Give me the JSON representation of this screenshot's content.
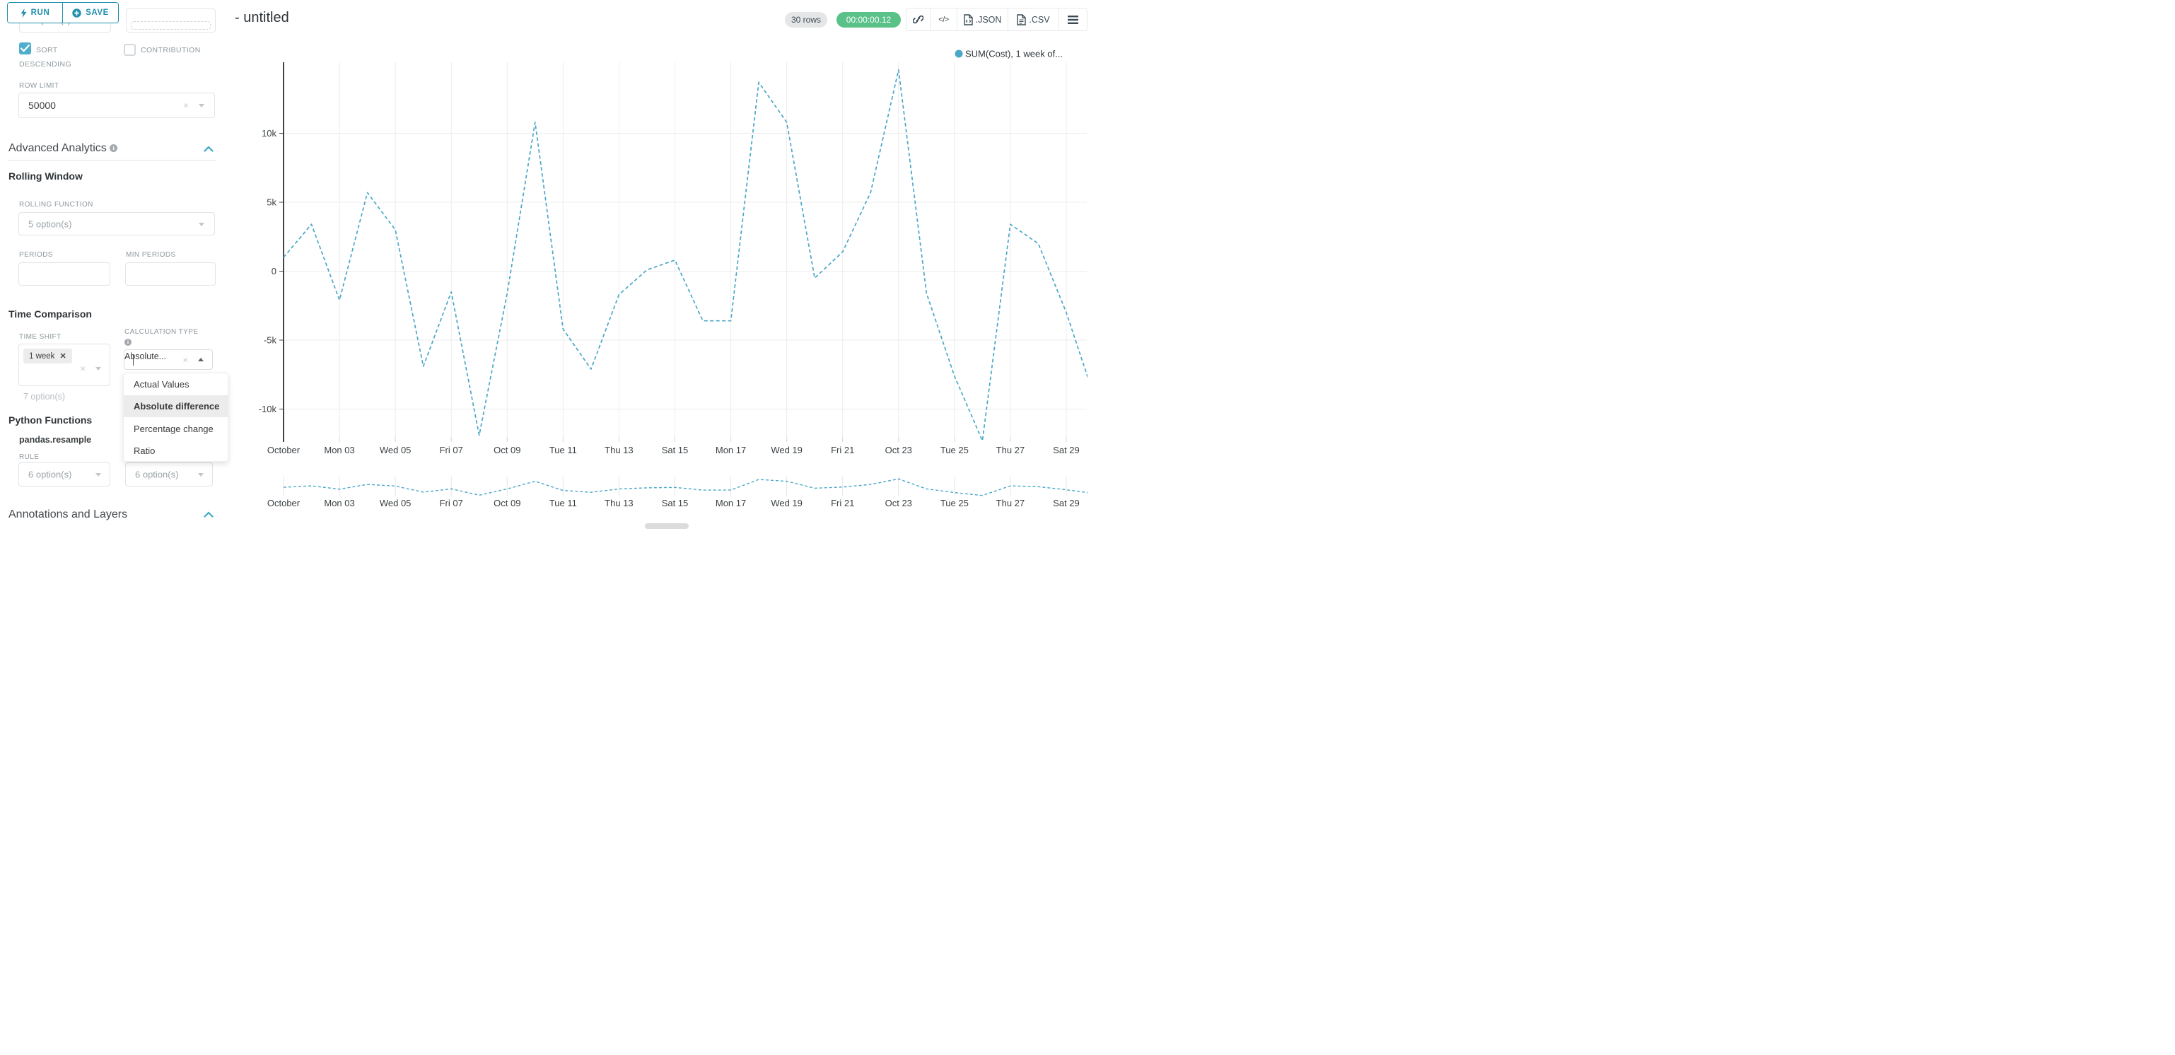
{
  "toolbar": {
    "run_label": "RUN",
    "save_label": "SAVE"
  },
  "sidebar": {
    "partial_select_value": "7 option(s)",
    "sort_descending_label": "SORT DESCENDING",
    "contribution_label": "CONTRIBUTION",
    "row_limit_label": "ROW LIMIT",
    "row_limit_value": "50000",
    "advanced_analytics_title": "Advanced Analytics",
    "rolling_window_title": "Rolling Window",
    "rolling_function_label": "ROLLING FUNCTION",
    "rolling_function_value": "5 option(s)",
    "periods_label": "PERIODS",
    "min_periods_label": "MIN PERIODS",
    "time_comparison_title": "Time Comparison",
    "time_shift_label": "TIME SHIFT",
    "time_shift_tag": "1 week",
    "time_shift_placeholder": "7 option(s)",
    "calculation_type_label": "CALCULATION TYPE",
    "calculation_type_value": "Absolute...",
    "python_functions_title": "Python Functions",
    "pandas_resample_label": "pandas.resample",
    "rule_label": "RULE",
    "rule_value_left": "6 option(s)",
    "rule_value_right": "6 option(s)",
    "annotations_title": "Annotations and Layers"
  },
  "dropdown": {
    "items": [
      "Actual Values",
      "Absolute difference",
      "Percentage change",
      "Ratio"
    ],
    "selected": "Absolute difference"
  },
  "header": {
    "title": "- untitled",
    "rows_badge": "30 rows",
    "timer_badge": "00:00:00.12",
    "code_icon_label": "</>",
    "json_label": ".JSON",
    "csv_label": ".CSV"
  },
  "colors": {
    "accent_teal": "#2191ad",
    "checkbox_teal": "#4faecb",
    "timer_green": "#5ac189",
    "line_blue": "#4ba7c7"
  },
  "chart_data": {
    "type": "line",
    "title": "",
    "legend": [
      {
        "label": "SUM(Cost), 1 week of...",
        "color": "#4ba7c7"
      }
    ],
    "series": [
      {
        "name": "SUM(Cost), 1 week of...",
        "values": [
          1000,
          3400,
          -2100,
          5700,
          3000,
          -6900,
          -1500,
          -11900,
          -1600,
          10800,
          -4200,
          -7100,
          -1700,
          100,
          800,
          -3600,
          -3600,
          13700,
          10800,
          -500,
          1400,
          5700,
          14600,
          -1600,
          -7600,
          -12300,
          3400,
          2000,
          -3000,
          -9100
        ]
      }
    ],
    "x": [
      "Oct 01",
      "Oct 02",
      "Oct 03",
      "Oct 04",
      "Oct 05",
      "Oct 06",
      "Oct 07",
      "Oct 08",
      "Oct 09",
      "Oct 10",
      "Oct 11",
      "Oct 12",
      "Oct 13",
      "Oct 14",
      "Oct 15",
      "Oct 16",
      "Oct 17",
      "Oct 18",
      "Oct 19",
      "Oct 20",
      "Oct 21",
      "Oct 22",
      "Oct 23",
      "Oct 24",
      "Oct 25",
      "Oct 26",
      "Oct 27",
      "Oct 28",
      "Oct 29",
      "Oct 30"
    ],
    "x_tick_labels": [
      "October",
      "Mon 03",
      "Wed 05",
      "Fri 07",
      "Oct 09",
      "Tue 11",
      "Thu 13",
      "Sat 15",
      "Mon 17",
      "Wed 19",
      "Fri 21",
      "Oct 23",
      "Tue 25",
      "Thu 27",
      "Sat 29"
    ],
    "y_tick_labels": [
      "10k",
      "5k",
      "0",
      "-5k",
      "-10k"
    ],
    "y_tick_values": [
      10000,
      5000,
      0,
      -5000,
      -10000
    ],
    "ylim": [
      -12800,
      15000
    ],
    "line_style": "dashed",
    "grid": true,
    "legend_position": "top-right",
    "preview_strip": true
  }
}
